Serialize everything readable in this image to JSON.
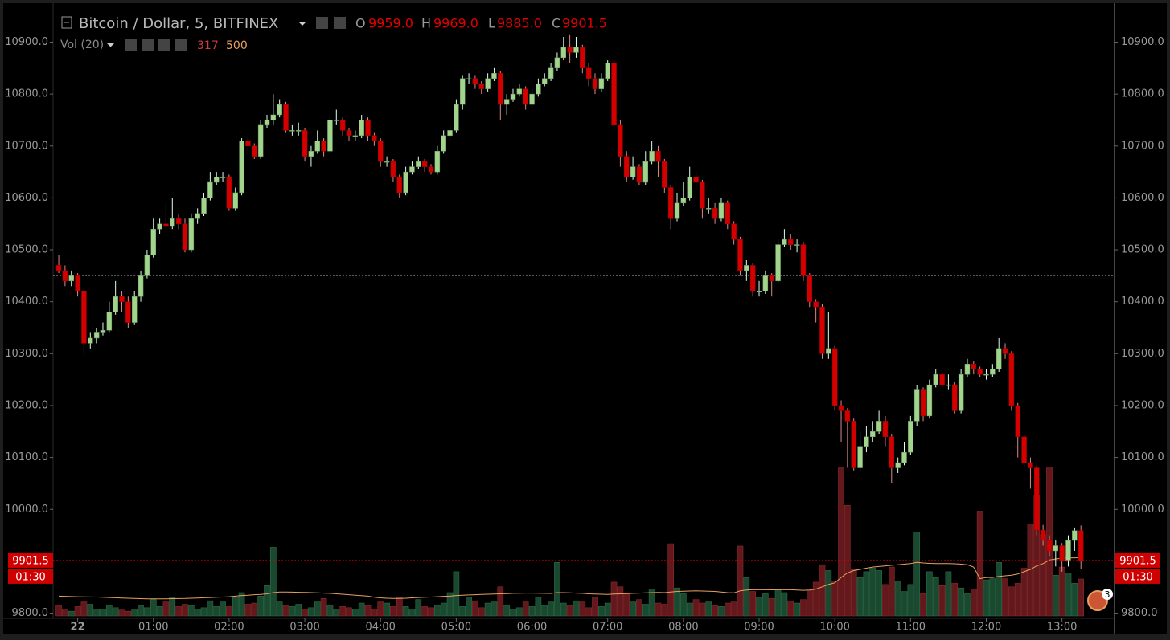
{
  "chart_data": {
    "type": "candlestick",
    "title": "Bitcoin / Dollar, 5, BITFINEX",
    "ohlc_letters": [
      "O",
      "H",
      "L",
      "C"
    ],
    "ohlc_labels": [
      "9959.0",
      "9969.0",
      "9885.0",
      "9901.5"
    ],
    "volume_title": "Vol (20)",
    "volume_label": "317",
    "volume_ma_label": "500",
    "countdown": "01:30",
    "badge": "3",
    "reference_price": 10450,
    "up_color": "#a3d48e",
    "down_color": "#d40000",
    "volume_up_color": "#1d5236",
    "volume_down_color": "#6e1c20",
    "volume_ma_color": "#e8a060",
    "xlim": [
      -59,
      821
    ],
    "xticks": [
      {
        "value": 0,
        "label": "22"
      },
      {
        "value": 60,
        "label": "01:00"
      },
      {
        "value": 120,
        "label": "02:00"
      },
      {
        "value": 180,
        "label": "03:00"
      },
      {
        "value": 240,
        "label": "04:00"
      },
      {
        "value": 300,
        "label": "05:00"
      },
      {
        "value": 360,
        "label": "06:00"
      },
      {
        "value": 420,
        "label": "07:00"
      },
      {
        "value": 480,
        "label": "08:00"
      },
      {
        "value": 540,
        "label": "09:00"
      },
      {
        "value": 600,
        "label": "10:00"
      },
      {
        "value": 660,
        "label": "11:00"
      },
      {
        "value": 720,
        "label": "12:00"
      },
      {
        "value": 780,
        "label": "13:00"
      }
    ],
    "ylim": [
      9790,
      10975
    ],
    "yticks": [
      {
        "value": 9800,
        "label": "9800.0"
      },
      {
        "value": 10000,
        "label": "10000.0"
      },
      {
        "value": 10100,
        "label": "10100.0"
      },
      {
        "value": 10200,
        "label": "10200.0"
      },
      {
        "value": 10300,
        "label": "10300.0"
      },
      {
        "value": 10400,
        "label": "10400.0"
      },
      {
        "value": 10500,
        "label": "10500.0"
      },
      {
        "value": 10600,
        "label": "10600.0"
      },
      {
        "value": 10700,
        "label": "10700.0"
      },
      {
        "value": 10800,
        "label": "10800.0"
      },
      {
        "value": 10900,
        "label": "10900.0"
      }
    ],
    "volume_ylim": [
      0,
      1400
    ],
    "x": [
      -15,
      -10,
      -5,
      0,
      5,
      10,
      15,
      20,
      25,
      30,
      35,
      40,
      45,
      50,
      55,
      60,
      65,
      70,
      75,
      80,
      85,
      90,
      95,
      100,
      105,
      110,
      115,
      120,
      125,
      130,
      135,
      140,
      145,
      150,
      155,
      160,
      165,
      170,
      175,
      180,
      185,
      190,
      195,
      200,
      205,
      210,
      215,
      220,
      225,
      230,
      235,
      240,
      245,
      250,
      255,
      260,
      265,
      270,
      275,
      280,
      285,
      290,
      295,
      300,
      305,
      310,
      315,
      320,
      325,
      330,
      335,
      340,
      345,
      350,
      355,
      360,
      365,
      370,
      375,
      380,
      385,
      390,
      395,
      400,
      405,
      410,
      415,
      420,
      425,
      430,
      435,
      440,
      445,
      450,
      455,
      460,
      465,
      470,
      475,
      480,
      485,
      490,
      495,
      500,
      505,
      510,
      515,
      520,
      525,
      530,
      535,
      540,
      545,
      550,
      555,
      560,
      565,
      570,
      575,
      580,
      585,
      590,
      595,
      600,
      605,
      610,
      615,
      620,
      625,
      630,
      635,
      640,
      645,
      650,
      655,
      660,
      665,
      670,
      675,
      680,
      685,
      690,
      695,
      700,
      705,
      710,
      715,
      720,
      725,
      730,
      735,
      740,
      745,
      750,
      755,
      760,
      765,
      770,
      775,
      780,
      785,
      790,
      795
    ],
    "open": [
      10470,
      10460,
      10440,
      10450,
      10420,
      10320,
      10330,
      10340,
      10345,
      10380,
      10410,
      10400,
      10360,
      10410,
      10450,
      10490,
      10540,
      10550,
      10545,
      10560,
      10550,
      10500,
      10560,
      10570,
      10600,
      10630,
      10640,
      10640,
      10580,
      10610,
      10710,
      10700,
      10680,
      10740,
      10750,
      10760,
      10780,
      10730,
      10730,
      10730,
      10680,
      10690,
      10710,
      10690,
      10750,
      10750,
      10730,
      10720,
      10720,
      10750,
      10720,
      10710,
      10670,
      10670,
      10640,
      10610,
      10650,
      10660,
      10670,
      10660,
      10650,
      10690,
      10720,
      10730,
      10780,
      10830,
      10830,
      10820,
      10810,
      10830,
      10840,
      10780,
      10790,
      10800,
      10810,
      10780,
      10800,
      10820,
      10830,
      10850,
      10870,
      10890,
      10880,
      10890,
      10850,
      10830,
      10810,
      10830,
      10860,
      10740,
      10680,
      10640,
      10660,
      10630,
      10670,
      10690,
      10670,
      10620,
      10560,
      10590,
      10600,
      10640,
      10630,
      10580,
      10580,
      10560,
      10590,
      10550,
      10520,
      10460,
      10470,
      10420,
      10420,
      10450,
      10440,
      10510,
      10520,
      10510,
      10510,
      10450,
      10400,
      10390,
      10300,
      10310,
      10200,
      10190,
      10170,
      10080,
      10120,
      10140,
      10150,
      10170,
      10140,
      10080,
      10090,
      10110,
      10170,
      10230,
      10180,
      10240,
      10260,
      10240,
      10240,
      10190,
      10260,
      10280,
      10270,
      10260,
      10260,
      10270,
      10310,
      10300,
      10200,
      10140,
      10090,
      10080,
      9960,
      9940,
      9920,
      9930,
      9900,
      9940,
      9959
    ],
    "high": [
      10490,
      10470,
      10460,
      10455,
      10425,
      10340,
      10350,
      10360,
      10400,
      10440,
      10420,
      10410,
      10420,
      10460,
      10500,
      10560,
      10560,
      10590,
      10600,
      10570,
      10560,
      10570,
      10580,
      10610,
      10650,
      10650,
      10650,
      10645,
      10620,
      10715,
      10720,
      10705,
      10750,
      10760,
      10800,
      10790,
      10785,
      10740,
      10745,
      10735,
      10700,
      10730,
      10715,
      10760,
      10770,
      10755,
      10735,
      10730,
      10760,
      10755,
      10725,
      10715,
      10680,
      10675,
      10645,
      10660,
      10670,
      10680,
      10675,
      10665,
      10700,
      10730,
      10740,
      10790,
      10835,
      10840,
      10835,
      10825,
      10840,
      10850,
      10845,
      10800,
      10810,
      10820,
      10815,
      10810,
      10830,
      10840,
      10860,
      10880,
      10910,
      10915,
      10910,
      10895,
      10860,
      10840,
      10840,
      10865,
      10865,
      10750,
      10690,
      10680,
      10665,
      10690,
      10710,
      10700,
      10675,
      10625,
      10610,
      10630,
      10660,
      10650,
      10635,
      10600,
      10590,
      10600,
      10595,
      10555,
      10525,
      10480,
      10475,
      10440,
      10460,
      10455,
      10520,
      10540,
      10530,
      10520,
      10515,
      10455,
      10405,
      10395,
      10380,
      10315,
      10210,
      10195,
      10175,
      10150,
      10160,
      10170,
      10190,
      10180,
      10145,
      10100,
      10130,
      10180,
      10240,
      10235,
      10250,
      10270,
      10265,
      10260,
      10245,
      10270,
      10290,
      10285,
      10275,
      10270,
      10280,
      10330,
      10320,
      10305,
      10205,
      10145,
      10100,
      10085,
      9970,
      9950,
      9940,
      9935,
      9950,
      9965,
      9969
    ],
    "low": [
      10455,
      10430,
      10430,
      10410,
      10300,
      10310,
      10320,
      10335,
      10340,
      10375,
      10380,
      10350,
      10355,
      10400,
      10445,
      10485,
      10530,
      10540,
      10540,
      10540,
      10495,
      10495,
      10550,
      10565,
      10595,
      10625,
      10630,
      10575,
      10575,
      10605,
      10690,
      10675,
      10675,
      10735,
      10740,
      10755,
      10725,
      10720,
      10720,
      10670,
      10660,
      10685,
      10680,
      10685,
      10740,
      10720,
      10710,
      10710,
      10715,
      10710,
      10700,
      10660,
      10660,
      10630,
      10600,
      10605,
      10645,
      10655,
      10650,
      10645,
      10645,
      10685,
      10710,
      10725,
      10770,
      10820,
      10810,
      10800,
      10805,
      10825,
      10750,
      10760,
      10785,
      10795,
      10770,
      10775,
      10795,
      10815,
      10825,
      10845,
      10865,
      10860,
      10870,
      10840,
      10815,
      10800,
      10805,
      10825,
      10730,
      10660,
      10630,
      10635,
      10625,
      10625,
      10665,
      10640,
      10610,
      10540,
      10555,
      10585,
      10595,
      10620,
      10560,
      10570,
      10550,
      10555,
      10540,
      10510,
      10450,
      10440,
      10410,
      10410,
      10415,
      10410,
      10435,
      10505,
      10500,
      10495,
      10440,
      10390,
      10360,
      10290,
      10290,
      10190,
      10130,
      10080,
      10075,
      10075,
      10110,
      10130,
      10145,
      10120,
      10050,
      10070,
      10085,
      10105,
      10160,
      10170,
      10175,
      10235,
      10230,
      10230,
      10185,
      10185,
      10255,
      10260,
      10255,
      10250,
      10255,
      10265,
      10290,
      10190,
      10100,
      10080,
      10040,
      9950,
      9930,
      9910,
      9890,
      9880,
      9890,
      9920,
      9885
    ],
    "close": [
      10460,
      10440,
      10450,
      10420,
      10320,
      10330,
      10340,
      10345,
      10380,
      10410,
      10400,
      10360,
      10410,
      10450,
      10490,
      10540,
      10550,
      10545,
      10560,
      10550,
      10500,
      10560,
      10570,
      10600,
      10630,
      10640,
      10640,
      10580,
      10610,
      10710,
      10700,
      10680,
      10740,
      10750,
      10760,
      10780,
      10730,
      10730,
      10730,
      10680,
      10690,
      10710,
      10690,
      10750,
      10750,
      10730,
      10720,
      10720,
      10750,
      10720,
      10710,
      10670,
      10670,
      10640,
      10610,
      10650,
      10660,
      10670,
      10660,
      10650,
      10690,
      10720,
      10730,
      10780,
      10830,
      10830,
      10820,
      10810,
      10830,
      10840,
      10780,
      10790,
      10800,
      10810,
      10780,
      10800,
      10820,
      10830,
      10850,
      10870,
      10890,
      10880,
      10890,
      10850,
      10830,
      10810,
      10830,
      10860,
      10740,
      10680,
      10640,
      10660,
      10630,
      10670,
      10690,
      10670,
      10620,
      10560,
      10590,
      10600,
      10640,
      10630,
      10580,
      10580,
      10560,
      10590,
      10550,
      10520,
      10460,
      10470,
      10420,
      10420,
      10450,
      10440,
      10510,
      10520,
      10510,
      10510,
      10450,
      10400,
      10390,
      10300,
      10310,
      10200,
      10190,
      10170,
      10080,
      10120,
      10140,
      10150,
      10170,
      10140,
      10080,
      10090,
      10110,
      10170,
      10230,
      10180,
      10240,
      10260,
      10240,
      10240,
      10190,
      10260,
      10280,
      10270,
      10260,
      10260,
      10270,
      10310,
      10300,
      10200,
      10140,
      10090,
      10080,
      9960,
      9940,
      9920,
      9930,
      9900,
      9940,
      9959,
      9901.5
    ],
    "volume": [
      90,
      60,
      40,
      80,
      120,
      100,
      60,
      60,
      90,
      70,
      50,
      40,
      60,
      90,
      70,
      140,
      80,
      120,
      160,
      80,
      100,
      90,
      60,
      70,
      130,
      80,
      120,
      80,
      160,
      200,
      100,
      110,
      170,
      260,
      590,
      120,
      90,
      80,
      100,
      60,
      70,
      120,
      150,
      90,
      60,
      80,
      70,
      60,
      110,
      90,
      60,
      120,
      110,
      80,
      160,
      80,
      60,
      140,
      80,
      70,
      90,
      110,
      200,
      380,
      80,
      160,
      130,
      70,
      110,
      120,
      250,
      90,
      60,
      70,
      120,
      80,
      160,
      90,
      120,
      460,
      110,
      90,
      130,
      120,
      70,
      160,
      80,
      110,
      290,
      250,
      190,
      120,
      140,
      100,
      230,
      110,
      100,
      620,
      240,
      190,
      110,
      140,
      110,
      120,
      90,
      80,
      110,
      120,
      600,
      330,
      210,
      160,
      190,
      150,
      230,
      200,
      130,
      110,
      140,
      220,
      290,
      440,
      390,
      300,
      1280,
      950,
      400,
      330,
      380,
      410,
      390,
      270,
      420,
      300,
      210,
      270,
      720,
      190,
      380,
      330,
      260,
      380,
      280,
      240,
      190,
      230,
      900,
      310,
      320,
      460,
      320,
      250,
      280,
      410,
      790,
      1040,
      700,
      1280,
      350,
      420,
      370,
      280,
      317
    ],
    "volume_ma": [
      170,
      168,
      166,
      165,
      164,
      163,
      162,
      160,
      158,
      156,
      154,
      152,
      150,
      148,
      147,
      146,
      146,
      147,
      148,
      149,
      150,
      152,
      154,
      156,
      158,
      160,
      162,
      165,
      170,
      175,
      178,
      182,
      185,
      190,
      200,
      205,
      205,
      204,
      203,
      202,
      200,
      198,
      196,
      194,
      190,
      186,
      182,
      178,
      174,
      170,
      160,
      155,
      152,
      150,
      150,
      152,
      155,
      158,
      160,
      162,
      165,
      168,
      170,
      175,
      178,
      180,
      182,
      184,
      186,
      188,
      190,
      192,
      194,
      195,
      196,
      196,
      195,
      194,
      193,
      200,
      200,
      198,
      196,
      194,
      190,
      188,
      186,
      184,
      188,
      190,
      192,
      194,
      196,
      198,
      200,
      202,
      200,
      205,
      210,
      212,
      214,
      215,
      214,
      212,
      210,
      205,
      200,
      198,
      215,
      222,
      225,
      226,
      225,
      224,
      225,
      226,
      225,
      222,
      220,
      222,
      230,
      250,
      270,
      285,
      330,
      370,
      390,
      400,
      410,
      420,
      425,
      430,
      435,
      440,
      445,
      450,
      460,
      455,
      452,
      450,
      450,
      450,
      448,
      445,
      440,
      420,
      320,
      330,
      330,
      340,
      345,
      350,
      360,
      380,
      400,
      430,
      450,
      480,
      490,
      495,
      498,
      499,
      500
    ]
  }
}
